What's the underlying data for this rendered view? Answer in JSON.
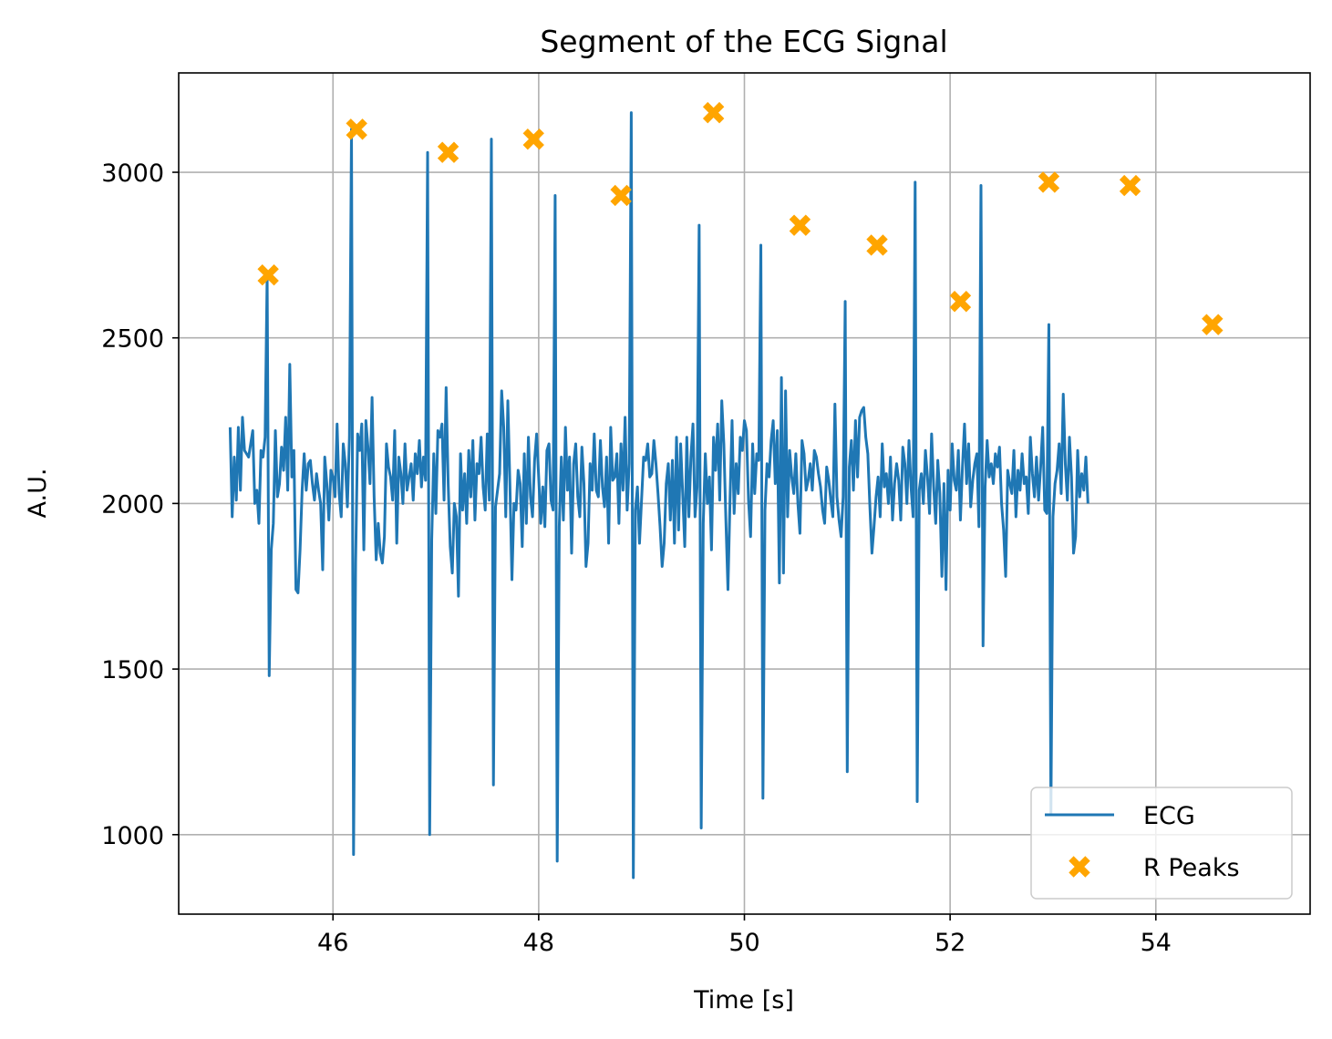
{
  "chart_data": {
    "type": "line",
    "title": "Segment of the ECG Signal",
    "xlabel": "Time [s]",
    "ylabel": "A.U.",
    "xlim": [
      44.5,
      55.5
    ],
    "ylim": [
      760,
      3300
    ],
    "xticks": [
      46,
      48,
      50,
      52,
      54
    ],
    "yticks": [
      1000,
      1500,
      2000,
      2500,
      3000
    ],
    "grid": true,
    "legend_position": "lower-right",
    "colors": {
      "ecg": "#1f77b4",
      "peaks": "#ffa500"
    },
    "series": [
      {
        "name": "ECG",
        "style": "line",
        "x_start": 45.0,
        "x_step": 0.02,
        "values": [
          2230,
          1960,
          2140,
          2010,
          2230,
          2040,
          2260,
          2160,
          2150,
          2140,
          2180,
          2220,
          2000,
          2040,
          1940,
          2160,
          2140,
          2200,
          2690,
          1480,
          1860,
          1940,
          2220,
          2020,
          2060,
          2170,
          2100,
          2260,
          2040,
          2420,
          2080,
          2160,
          1740,
          1730,
          1860,
          2040,
          2150,
          2040,
          2120,
          2130,
          2060,
          2010,
          2090,
          2040,
          2000,
          1800,
          2140,
          2060,
          1950,
          2100,
          2080,
          2020,
          2240,
          2030,
          1960,
          2180,
          2120,
          1990,
          2200,
          3130,
          940,
          1820,
          2210,
          2160,
          2240,
          1860,
          2250,
          2170,
          2060,
          2320,
          2020,
          1830,
          1940,
          1850,
          1820,
          1900,
          2180,
          2110,
          2080,
          2010,
          2220,
          1880,
          2140,
          2090,
          2000,
          2180,
          2040,
          2080,
          2120,
          2010,
          2150,
          2090,
          2190,
          2050,
          2140,
          2070,
          3060,
          1000,
          1890,
          2150,
          1970,
          2220,
          2200,
          2240,
          2010,
          2350,
          2060,
          1870,
          1790,
          2000,
          1960,
          1720,
          2150,
          1980,
          2090,
          1940,
          2160,
          2020,
          2190,
          1950,
          2120,
          2090,
          2200,
          2050,
          1980,
          2210,
          2010,
          3100,
          1150,
          1990,
          2040,
          2090,
          2340,
          2230,
          1960,
          2310,
          2060,
          1770,
          2000,
          1980,
          2100,
          2060,
          1870,
          2150,
          1940,
          2200,
          2020,
          1960,
          2130,
          2210,
          2080,
          1940,
          2050,
          1930,
          2160,
          2180,
          2010,
          1980,
          2930,
          920,
          1930,
          2140,
          1950,
          2230,
          2040,
          2140,
          1850,
          2120,
          2180,
          2020,
          1960,
          2170,
          2060,
          1810,
          1880,
          2120,
          2040,
          2210,
          2040,
          2020,
          2190,
          2050,
          1990,
          2140,
          1880,
          2230,
          2070,
          2080,
          2150,
          1940,
          2180,
          2040,
          2260,
          1980,
          2120,
          3180,
          870,
          1980,
          2050,
          1880,
          2010,
          2140,
          2130,
          2180,
          2080,
          2090,
          2190,
          2120,
          2030,
          1930,
          1810,
          1880,
          2060,
          2120,
          1950,
          2130,
          1880,
          2200,
          1920,
          2180,
          2030,
          1870,
          2200,
          1960,
          2140,
          2240,
          1960,
          2050,
          2840,
          1020,
          1940,
          2150,
          2000,
          2080,
          1860,
          2200,
          2100,
          2240,
          2010,
          2310,
          2180,
          1950,
          1740,
          2010,
          2250,
          1970,
          2120,
          2030,
          2200,
          2160,
          2250,
          2220,
          2010,
          1900,
          2180,
          2030,
          2150,
          2130,
          2780,
          1110,
          1980,
          2120,
          2080,
          2190,
          2250,
          2060,
          2220,
          1760,
          2380,
          1790,
          2340,
          1960,
          2160,
          2080,
          2030,
          2150,
          2000,
          1910,
          2190,
          2150,
          2040,
          2070,
          2120,
          2040,
          2160,
          2140,
          2090,
          2050,
          1980,
          1940,
          2110,
          2070,
          2010,
          1960,
          2300,
          2020,
          1950,
          1900,
          2020,
          2610,
          1190,
          2110,
          2190,
          2040,
          2250,
          2080,
          2260,
          2280,
          2290,
          2200,
          2150,
          1990,
          1850,
          1930,
          2020,
          2080,
          1960,
          2180,
          2050,
          2090,
          2000,
          2140,
          1950,
          2060,
          2120,
          2070,
          1950,
          2170,
          2120,
          2000,
          2190,
          2050,
          1960,
          2970,
          1100,
          2040,
          2090,
          2000,
          2160,
          2080,
          1970,
          2210,
          2050,
          1940,
          2130,
          2030,
          1780,
          2060,
          1740,
          2100,
          1980,
          2180,
          2070,
          2040,
          2160,
          1950,
          2110,
          2240,
          2060,
          2180,
          1990,
          2070,
          2120,
          2150,
          1930,
          2960,
          1570,
          2050,
          2190,
          2080,
          2120,
          2060,
          2150,
          2110,
          2170,
          2000,
          1920,
          1780,
          2100,
          2060,
          2030,
          2160,
          1960,
          2100,
          2040,
          2150,
          2060,
          2080,
          1970,
          2200,
          2090,
          2020,
          2140,
          2010,
          2110,
          2230,
          1980,
          1970,
          2540,
          1060,
          1960,
          2060,
          2100,
          2180,
          2030,
          2330,
          2120,
          2010,
          2200,
          2080,
          1850,
          1900,
          2160,
          2020,
          2090,
          2040,
          2140,
          2000
        ]
      },
      {
        "name": "R Peaks",
        "style": "marker-x",
        "x": [
          45.37,
          46.23,
          47.12,
          47.95,
          48.8,
          49.7,
          50.54,
          51.29,
          52.1,
          52.96,
          53.75,
          54.55
        ],
        "y": [
          2690,
          3130,
          3060,
          3100,
          2930,
          3180,
          2840,
          2780,
          2610,
          2970,
          2960,
          2540
        ]
      }
    ]
  }
}
